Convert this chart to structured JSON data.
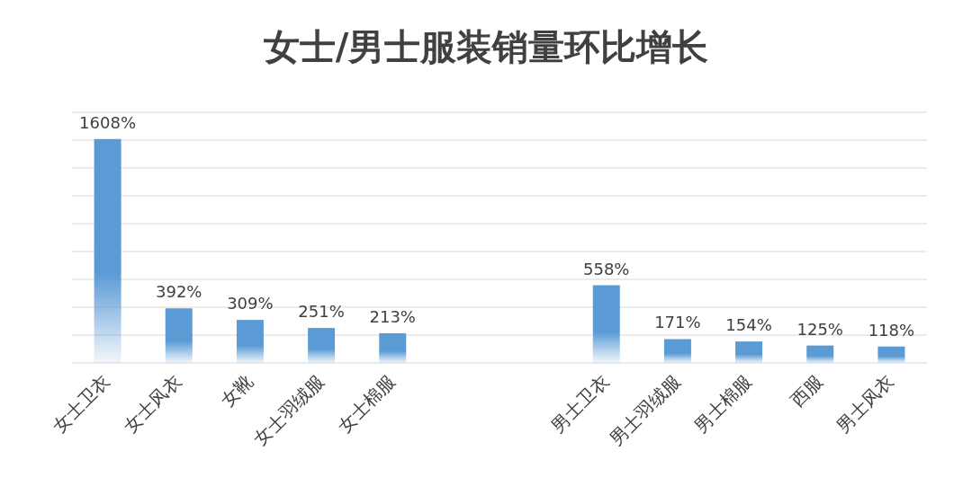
{
  "chart_data": {
    "type": "bar",
    "title": "女士/男士服装销量环比增长",
    "categories": [
      "女士卫衣",
      "女士风衣",
      "女靴",
      "女士羽绒服",
      "女士棉服",
      null,
      null,
      "男士卫衣",
      "男士羽绒服",
      "男士棉服",
      "西服",
      "男士风衣"
    ],
    "values": [
      1608,
      392,
      309,
      251,
      213,
      null,
      null,
      558,
      171,
      154,
      125,
      118
    ],
    "value_labels": [
      "1608%",
      "392%",
      "309%",
      "251%",
      "213%",
      null,
      null,
      "558%",
      "171%",
      "154%",
      "125%",
      "118%"
    ],
    "color": "#5b9bd5",
    "ylim": [
      0,
      1800
    ],
    "yticks": [
      {
        "value": 0,
        "label": null
      },
      {
        "value": 200,
        "label": null
      },
      {
        "value": 400,
        "label": null
      },
      {
        "value": 600,
        "label": null
      },
      {
        "value": 800,
        "label": null
      },
      {
        "value": 1000,
        "label": null
      },
      {
        "value": 1200,
        "label": null
      },
      {
        "value": 1400,
        "label": null
      },
      {
        "value": 1600,
        "label": null
      },
      {
        "value": 1800,
        "label": null
      }
    ],
    "grid": "y"
  }
}
